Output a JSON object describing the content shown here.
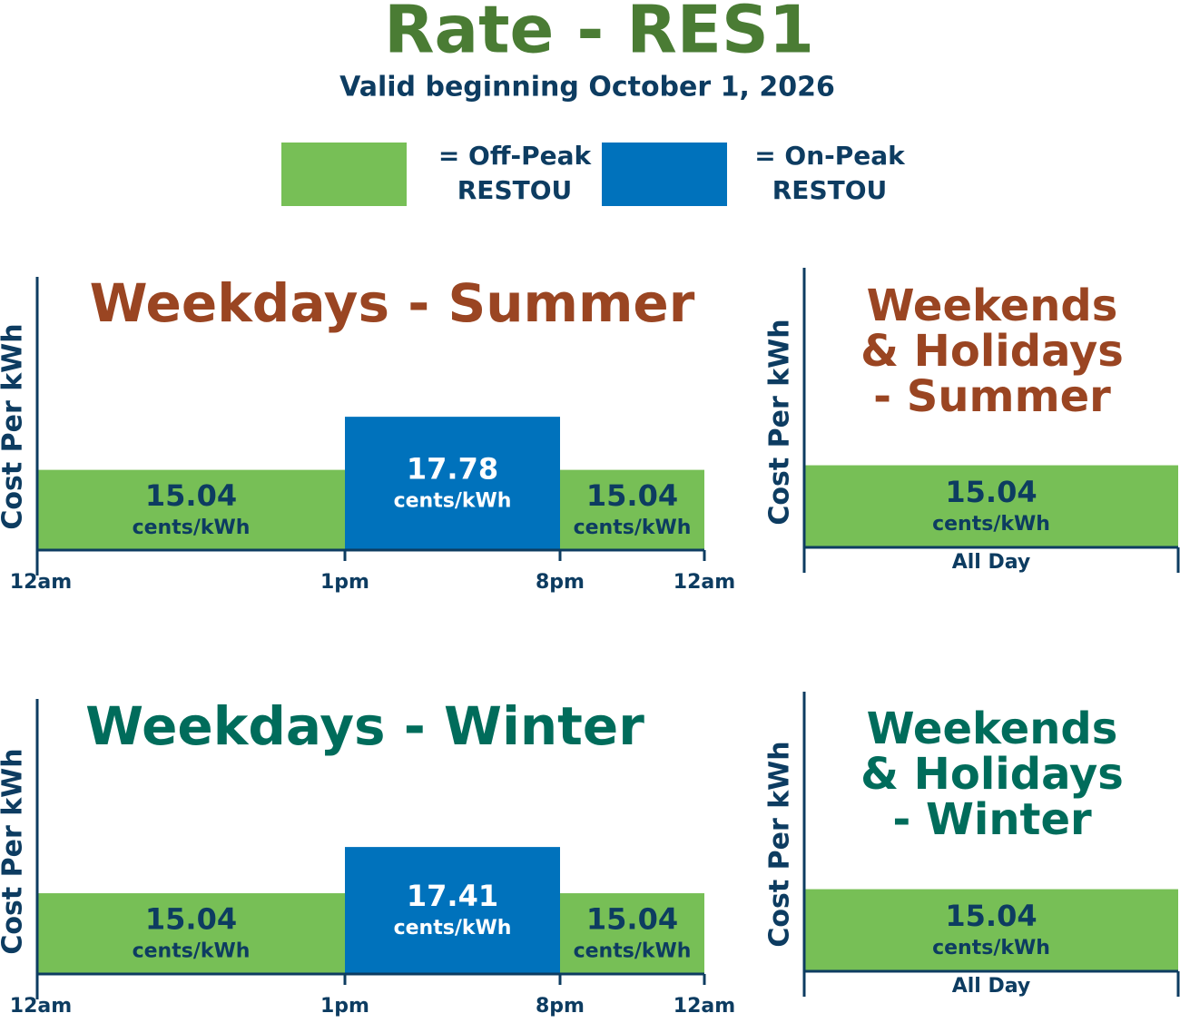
{
  "header": {
    "title": "Rate - RES1",
    "subtitle": "Valid beginning October 1, 2026"
  },
  "legend": [
    {
      "name": [
        "= Off-Peak",
        "RESTOU"
      ],
      "color": "#77bf56"
    },
    {
      "name": [
        "= On-Peak",
        "RESTOU"
      ],
      "color": "#0072bc"
    }
  ],
  "chart_data": [
    {
      "type": "bar",
      "title": [
        "Weekdays - Summer"
      ],
      "title_color": "#9a4522",
      "ylabel": "Cost Per kWh",
      "x_labels": [
        "12am",
        "1pm",
        "8pm",
        "12am"
      ],
      "values": [
        15.04,
        17.78,
        15.04
      ],
      "colors": [
        "#77bf56",
        "#0072bc",
        "#77bf56"
      ],
      "unit": "cents/kWh",
      "ylim": [
        10.9,
        25
      ]
    },
    {
      "type": "bar",
      "title": [
        "Weekends",
        "& Holidays",
        "- Summer"
      ],
      "title_color": "#9a4522",
      "ylabel": "Cost Per kWh",
      "x_labels": [
        "All Day"
      ],
      "values": [
        15.04
      ],
      "colors": [
        "#77bf56"
      ],
      "unit": "cents/kWh",
      "ylim": [
        10.9,
        25
      ]
    },
    {
      "type": "bar",
      "title": [
        "Weekdays - Winter"
      ],
      "title_color": "#006c5b",
      "ylabel": "Cost Per kWh",
      "x_labels": [
        "12am",
        "1pm",
        "8pm",
        "12am"
      ],
      "values": [
        15.04,
        17.41,
        15.04
      ],
      "colors": [
        "#77bf56",
        "#0072bc",
        "#77bf56"
      ],
      "unit": "cents/kWh",
      "ylim": [
        10.9,
        25
      ]
    },
    {
      "type": "bar",
      "title": [
        "Weekends",
        "& Holidays",
        "- Winter"
      ],
      "title_color": "#006c5b",
      "ylabel": "Cost Per kWh",
      "x_labels": [
        "All Day"
      ],
      "values": [
        15.04
      ],
      "colors": [
        "#77bf56"
      ],
      "unit": "cents/kWh",
      "ylim": [
        10.9,
        25
      ]
    }
  ]
}
